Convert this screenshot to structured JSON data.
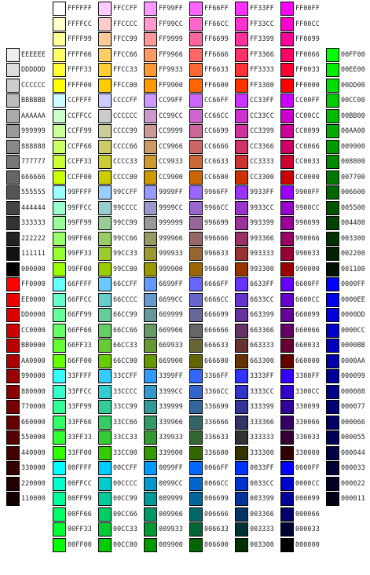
{
  "columns": [
    {
      "offset_rows": 3,
      "codes": [
        "EEEEEE",
        "DDDDDD",
        "CCCCCC",
        "BBBBBB",
        "AAAAAA",
        "999999",
        "888888",
        "777777",
        "666666",
        "555555",
        "444444",
        "333333",
        "222222",
        "111111",
        "000000",
        "FF0000",
        "EE0000",
        "DD0000",
        "CC0000",
        "BB0000",
        "AA0000",
        "990000",
        "880000",
        "770000",
        "660000",
        "550000",
        "440000",
        "330000",
        "220000",
        "110000"
      ]
    },
    {
      "offset_rows": 0,
      "codes": [
        "FFFFFF",
        "FFFFCC",
        "FFFF99",
        "FFFF66",
        "FFFF33",
        "FFFF00",
        "CCFFFF",
        "CCFFCC",
        "CCFF99",
        "CCFF66",
        "CCFF33",
        "CCFF00",
        "99FFFF",
        "99FFCC",
        "99FF99",
        "99FF66",
        "99FF33",
        "99FF00",
        "66FFFF",
        "66FFCC",
        "66FF99",
        "66FF66",
        "66FF33",
        "66FF00",
        "33FFFF",
        "33FFCC",
        "33FF99",
        "33FF66",
        "33FF33",
        "33FF00",
        "00FFFF",
        "00FFCC",
        "00FF99",
        "00FF66",
        "00FF33",
        "00FF00"
      ]
    },
    {
      "offset_rows": 0,
      "codes": [
        "FFCCFF",
        "FFCCCC",
        "FFCC99",
        "FFCC66",
        "FFCC33",
        "FFCC00",
        "CCCCFF",
        "CCCCCC",
        "CCCC99",
        "CCCC66",
        "CCCC33",
        "CCCC00",
        "99CCFF",
        "99CCCC",
        "99CC99",
        "99CC66",
        "99CC33",
        "99CC00",
        "66CCFF",
        "66CCCC",
        "66CC99",
        "66CC66",
        "66CC33",
        "66CC00",
        "33CCFF",
        "33CCCC",
        "33CC99",
        "33CC66",
        "33CC33",
        "33CC00",
        "00CCFF",
        "00CCCC",
        "00CC99",
        "00CC66",
        "00CC33",
        "00CC00"
      ]
    },
    {
      "offset_rows": 0,
      "codes": [
        "FF99FF",
        "FF99CC",
        "FF9999",
        "FF9966",
        "FF9933",
        "FF9900",
        "CC99FF",
        "CC99CC",
        "CC9999",
        "CC9966",
        "CC9933",
        "CC9900",
        "9999FF",
        "9999CC",
        "999999",
        "999966",
        "999933",
        "999900",
        "6699FF",
        "6699CC",
        "669999",
        "669966",
        "669933",
        "669900",
        "3399FF",
        "3399CC",
        "339999",
        "339966",
        "339933",
        "339900",
        "0099FF",
        "0099CC",
        "009999",
        "009966",
        "009933",
        "009900"
      ]
    },
    {
      "offset_rows": 0,
      "codes": [
        "FF66FF",
        "FF66CC",
        "FF6699",
        "FF6666",
        "FF6633",
        "FF6600",
        "CC66FF",
        "CC66CC",
        "CC6699",
        "CC6666",
        "CC6633",
        "CC6600",
        "9966FF",
        "9966CC",
        "996699",
        "996666",
        "996633",
        "996600",
        "6666FF",
        "6666CC",
        "666699",
        "666666",
        "666633",
        "666600",
        "3366FF",
        "3366CC",
        "336699",
        "336666",
        "336633",
        "336600",
        "0066FF",
        "0066CC",
        "006699",
        "006666",
        "006633",
        "006600"
      ]
    },
    {
      "offset_rows": 0,
      "codes": [
        "FF33FF",
        "FF33CC",
        "FF3399",
        "FF3366",
        "FF3333",
        "FF3300",
        "CC33FF",
        "CC33CC",
        "CC3399",
        "CC3366",
        "CC3333",
        "CC3300",
        "9933FF",
        "9933CC",
        "993399",
        "993366",
        "993333",
        "993300",
        "6633FF",
        "6633CC",
        "663399",
        "663366",
        "663333",
        "663300",
        "3333FF",
        "3333CC",
        "333399",
        "333366",
        "333333",
        "333300",
        "0033FF",
        "0033CC",
        "003399",
        "003366",
        "003333",
        "003300"
      ]
    },
    {
      "offset_rows": 0,
      "codes": [
        "FF00FF",
        "FF00CC",
        "FF0099",
        "FF0066",
        "FF0033",
        "FF0000",
        "CC00FF",
        "CC00CC",
        "CC0099",
        "CC0066",
        "CC0033",
        "CC0000",
        "9900FF",
        "9900CC",
        "990099",
        "990066",
        "990033",
        "990000",
        "6600FF",
        "6600CC",
        "660099",
        "660066",
        "660033",
        "660000",
        "3300FF",
        "3300CC",
        "330099",
        "330066",
        "330033",
        "330000",
        "0000FF",
        "0000CC",
        "000099",
        "000066",
        "000033",
        "000000"
      ]
    },
    {
      "offset_rows": 3,
      "codes": [
        "00FF00",
        "00EE00",
        "00DD00",
        "00CC00",
        "00BB00",
        "00AA00",
        "009900",
        "008800",
        "007700",
        "006600",
        "005500",
        "004400",
        "003300",
        "002200",
        "001100",
        "0000FF",
        "0000EE",
        "0000DD",
        "0000CC",
        "0000BB",
        "0000AA",
        "000099",
        "000088",
        "000077",
        "000066",
        "000055",
        "000044",
        "000033",
        "000022",
        "000011"
      ]
    }
  ]
}
